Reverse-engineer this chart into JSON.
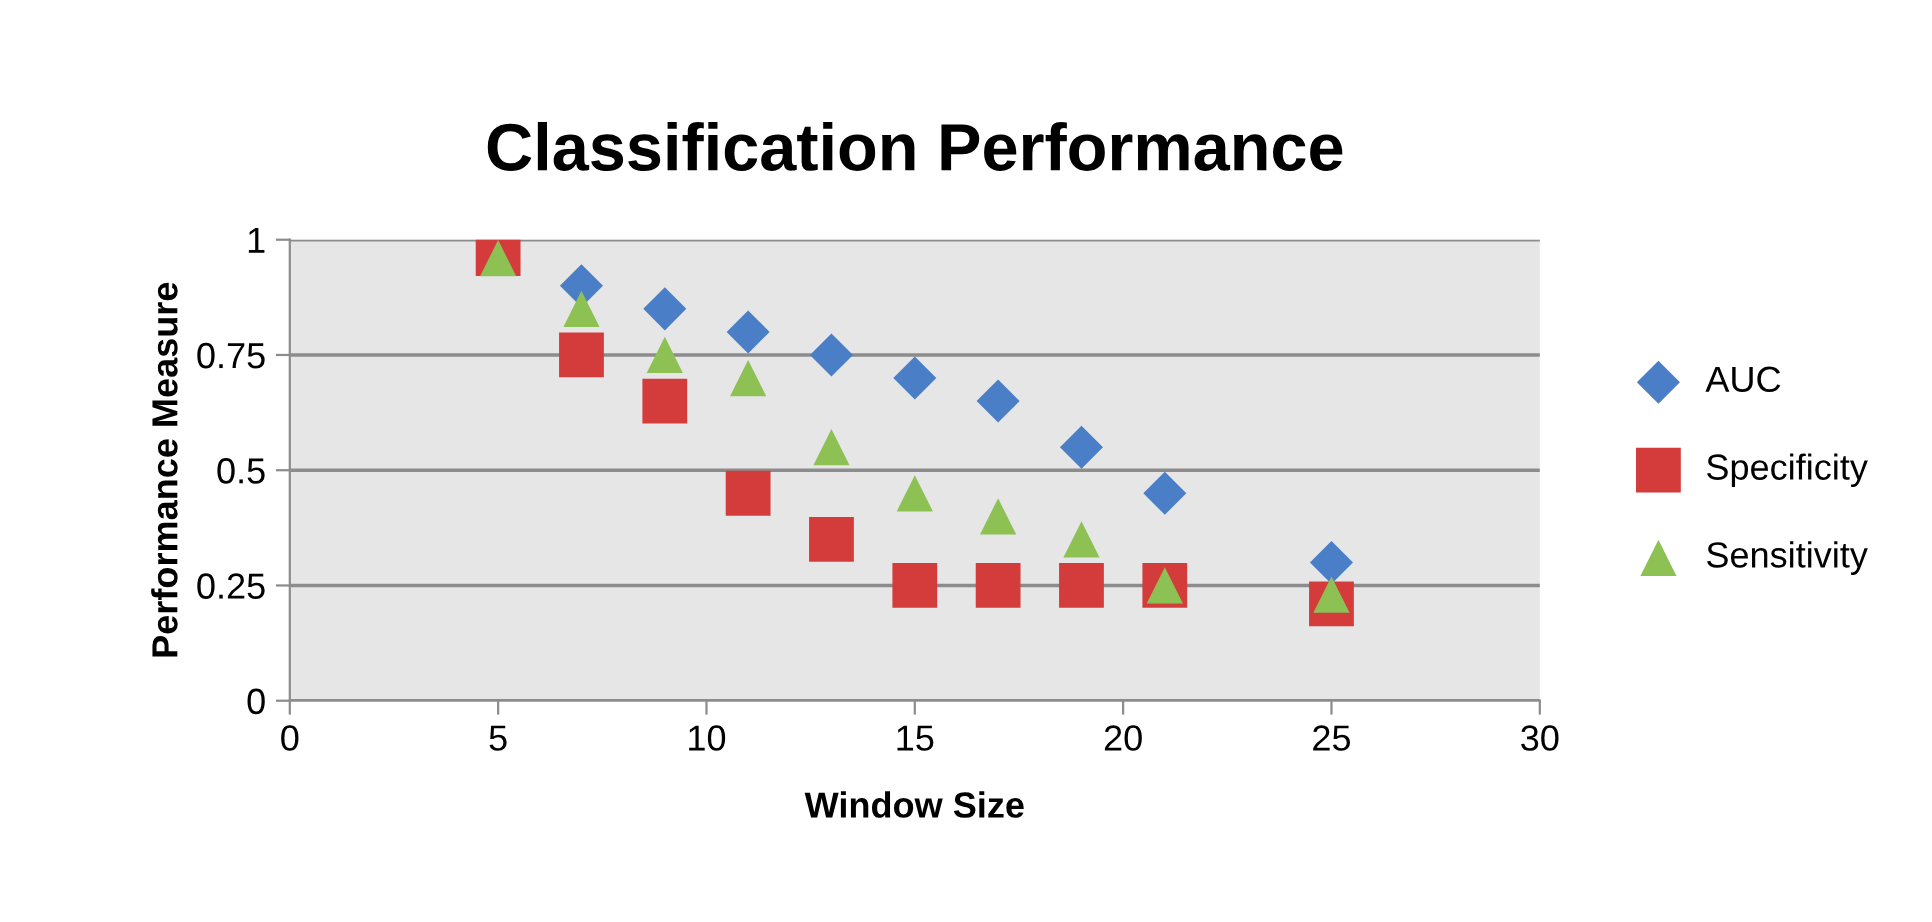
{
  "chart_data": {
    "type": "scatter",
    "title": "Classification Performance",
    "xlabel": "Window Size",
    "ylabel": "Performance Measure",
    "x": [
      5,
      7,
      9,
      11,
      13,
      15,
      17,
      19,
      21,
      25
    ],
    "series": [
      {
        "name": "AUC",
        "color": "#4a7fc8",
        "marker": "diamond",
        "values": [
          null,
          0.9,
          0.85,
          0.8,
          0.75,
          0.7,
          0.65,
          0.55,
          0.45,
          0.3
        ]
      },
      {
        "name": "Specificity",
        "color": "#d43c3c",
        "marker": "square",
        "values": [
          0.97,
          0.75,
          0.65,
          0.45,
          0.35,
          0.25,
          0.25,
          0.25,
          0.25,
          0.21
        ]
      },
      {
        "name": "Sensitivity",
        "color": "#8dc154",
        "marker": "triangle",
        "values": [
          0.96,
          0.85,
          0.75,
          0.7,
          0.55,
          0.45,
          0.4,
          0.35,
          0.25,
          0.23
        ]
      }
    ],
    "xlim": [
      0,
      30
    ],
    "xticks": [
      0,
      5,
      10,
      15,
      20,
      25,
      30
    ],
    "ylim": [
      0,
      1
    ],
    "yticks": [
      0,
      0.25,
      0.5,
      0.75,
      1
    ],
    "grid": "y",
    "legend": "right"
  }
}
